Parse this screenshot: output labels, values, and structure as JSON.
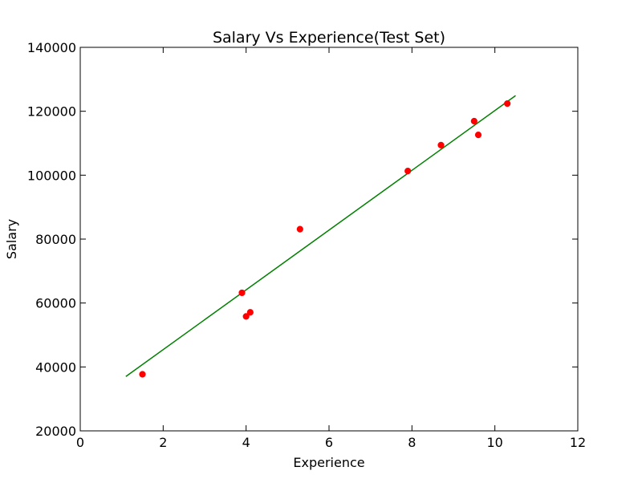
{
  "chart_data": {
    "type": "scatter",
    "title": "Salary Vs Experience(Test Set)",
    "xlabel": "Experience",
    "ylabel": "Salary",
    "xlim": [
      0,
      12
    ],
    "ylim": [
      20000,
      140000
    ],
    "xticks": [
      0,
      2,
      4,
      6,
      8,
      10,
      12
    ],
    "yticks": [
      20000,
      40000,
      60000,
      80000,
      100000,
      120000,
      140000
    ],
    "grid": false,
    "series": [
      {
        "kind": "scatter",
        "color": "#ff0000",
        "points": [
          [
            1.5,
            37700
          ],
          [
            3.9,
            63200
          ],
          [
            4.0,
            55800
          ],
          [
            4.1,
            57100
          ],
          [
            5.3,
            83100
          ],
          [
            7.9,
            101300
          ],
          [
            8.7,
            109400
          ],
          [
            9.5,
            116900
          ],
          [
            9.6,
            112600
          ],
          [
            10.3,
            122400
          ]
        ]
      },
      {
        "kind": "line",
        "color": "#008000",
        "points": [
          [
            1.1,
            37000
          ],
          [
            10.5,
            124900
          ]
        ]
      }
    ]
  }
}
